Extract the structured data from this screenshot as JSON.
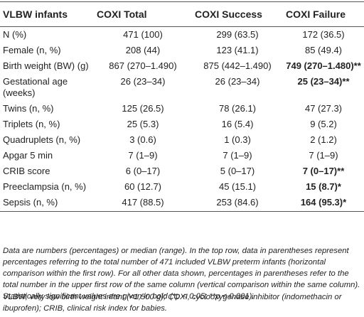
{
  "table": {
    "headers": [
      "VLBW infants",
      "COXI Total",
      "COXI Success",
      "COXI Failure"
    ],
    "rows": [
      {
        "label": "N (%)",
        "total": "471 (100)",
        "success": "299 (63.5)",
        "failure": "172 (36.5)",
        "failure_bold": false
      },
      {
        "label": "Female (n, %)",
        "total": "208 (44)",
        "success": "123 (41.1)",
        "failure": "85 (49.4)",
        "failure_bold": false
      },
      {
        "label": "Birth weight (BW) (g)",
        "total": "867 (270–1.490)",
        "success": "875 (442–1.490)",
        "failure": "749 (270–1.480)**",
        "failure_bold": true
      },
      {
        "label": "Gestational age (weeks)",
        "total": "26 (23–34)",
        "success": "26 (23–34)",
        "failure": "25 (23–34)**",
        "failure_bold": true
      },
      {
        "label": "Twins (n, %)",
        "total": "125 (26.5)",
        "success": "78 (26.1)",
        "failure": "47 (27.3)",
        "failure_bold": false
      },
      {
        "label": "Triplets (n, %)",
        "total": "25 (5.3)",
        "success": "16 (5.4)",
        "failure": "9 (5.2)",
        "failure_bold": false
      },
      {
        "label": "Quadruplets (n, %)",
        "total": "3 (0.6)",
        "success": "1 (0.3)",
        "failure": "2 (1.2)",
        "failure_bold": false
      },
      {
        "label": "Apgar 5 min",
        "total": "7 (1–9)",
        "success": "7 (1–9)",
        "failure": "7 (1–9)",
        "failure_bold": false
      },
      {
        "label": "CRIB score",
        "total": "6 (0–17)",
        "success": "5 (0–17)",
        "failure": "7 (0–17)**",
        "failure_bold": true
      },
      {
        "label": "Preeclampsia (n, %)",
        "total": "60 (12.7)",
        "success": "45 (15.1)",
        "failure": "15 (8.7)*",
        "failure_bold": true
      },
      {
        "label": "Sepsis (n, %)",
        "total": "417 (88.5)",
        "success": "253 (84.6)",
        "failure": "164 (95.3)*",
        "failure_bold": true
      }
    ]
  },
  "footnote_main": "Data are numbers (percentages) or median (range). In the top row, data in parentheses represent percentages referring to the total number of 471 included VLBW preterm infants (horizontal comparison within the first row). For all other data shown, percentages in parentheses refer to the total number in the upper first row of the same column (vertical comparison within the same column). Statistically significant values are given in bold (*p < 0.05; **p < 0.001).",
  "footnote_abbrev": "VLBW, very low birth weight infant (<1,500 g); COXI, cyclooxygenase inhibitor (indomethacin or ibuprofen); CRIB, clinical risk index for babies."
}
